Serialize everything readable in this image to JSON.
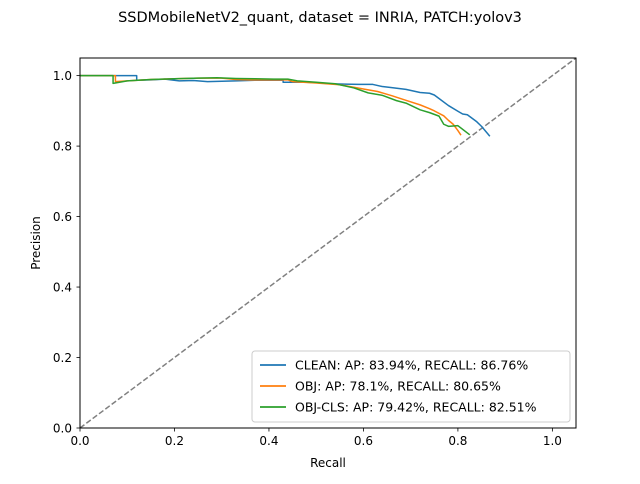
{
  "chart_data": {
    "type": "line",
    "title": "SSDMobileNetV2_quant, dataset = INRIA, PATCH:yolov3",
    "xlabel": "Recall",
    "ylabel": "Precision",
    "xlim": [
      0.0,
      1.05
    ],
    "ylim": [
      0.0,
      1.05
    ],
    "xticks": [
      "0.0",
      "0.2",
      "0.4",
      "0.6",
      "0.8",
      "1.0"
    ],
    "yticks": [
      "0.0",
      "0.2",
      "0.4",
      "0.6",
      "0.8",
      "1.0"
    ],
    "grid": false,
    "legend_position": "lower right",
    "reference_line": {
      "style": "dashed",
      "color": "#808080",
      "x": [
        0,
        1.05
      ],
      "y": [
        0,
        1.05
      ]
    },
    "series": [
      {
        "name": "CLEAN: AP: 83.94%, RECALL: 86.76%",
        "color": "#1f77b4",
        "x": [
          0.0,
          0.12,
          0.12,
          0.15,
          0.18,
          0.21,
          0.24,
          0.27,
          0.3,
          0.33,
          0.37,
          0.4,
          0.43,
          0.43,
          0.46,
          0.48,
          0.5,
          0.53,
          0.56,
          0.59,
          0.62,
          0.64,
          0.66,
          0.69,
          0.72,
          0.74,
          0.75,
          0.76,
          0.78,
          0.8,
          0.81,
          0.82,
          0.84,
          0.85,
          0.8676
        ],
        "y": [
          1.0,
          1.0,
          0.987,
          0.988,
          0.99,
          0.985,
          0.986,
          0.983,
          0.984,
          0.985,
          0.987,
          0.987,
          0.987,
          0.981,
          0.981,
          0.981,
          0.98,
          0.977,
          0.976,
          0.975,
          0.975,
          0.969,
          0.966,
          0.961,
          0.952,
          0.95,
          0.945,
          0.935,
          0.915,
          0.899,
          0.891,
          0.889,
          0.869,
          0.856,
          0.828
        ]
      },
      {
        "name": "OBJ: AP: 78.1%, RECALL: 80.65%",
        "color": "#ff7f0e",
        "x": [
          0.0,
          0.075,
          0.075,
          0.1,
          0.15,
          0.2,
          0.25,
          0.3,
          0.33,
          0.36,
          0.4,
          0.44,
          0.45,
          0.5,
          0.55,
          0.6,
          0.63,
          0.66,
          0.69,
          0.72,
          0.74,
          0.75,
          0.77,
          0.78,
          0.79,
          0.8,
          0.8065
        ],
        "y": [
          1.0,
          1.0,
          0.983,
          0.985,
          0.989,
          0.991,
          0.993,
          0.993,
          0.989,
          0.988,
          0.988,
          0.988,
          0.983,
          0.979,
          0.974,
          0.962,
          0.955,
          0.943,
          0.93,
          0.917,
          0.906,
          0.9,
          0.886,
          0.873,
          0.862,
          0.844,
          0.831
        ]
      },
      {
        "name": "OBJ-CLS: AP: 79.42%, RECALL: 82.51%",
        "color": "#2ca02c",
        "x": [
          0.0,
          0.07,
          0.07,
          0.1,
          0.15,
          0.2,
          0.25,
          0.29,
          0.33,
          0.37,
          0.41,
          0.44,
          0.46,
          0.5,
          0.54,
          0.58,
          0.61,
          0.64,
          0.67,
          0.69,
          0.72,
          0.74,
          0.76,
          0.77,
          0.78,
          0.8,
          0.8251
        ],
        "y": [
          1.0,
          1.0,
          0.978,
          0.985,
          0.989,
          0.991,
          0.993,
          0.994,
          0.992,
          0.991,
          0.99,
          0.99,
          0.985,
          0.981,
          0.977,
          0.965,
          0.951,
          0.944,
          0.929,
          0.922,
          0.903,
          0.895,
          0.885,
          0.862,
          0.856,
          0.858,
          0.832
        ]
      }
    ]
  }
}
